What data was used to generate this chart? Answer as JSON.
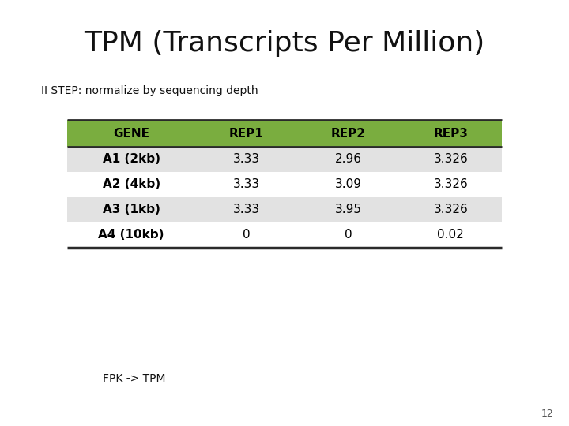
{
  "title": "TPM (Transcripts Per Million)",
  "subtitle": "II STEP: normalize by sequencing depth",
  "footer": "FPK -> TPM",
  "page_number": "12",
  "table_headers": [
    "GENE",
    "REP1",
    "REP2",
    "REP3"
  ],
  "table_rows": [
    [
      "A1 (2kb)",
      "3.33",
      "2.96",
      "3.326"
    ],
    [
      "A2 (4kb)",
      "3.33",
      "3.09",
      "3.326"
    ],
    [
      "A3 (1kb)",
      "3.33",
      "3.95",
      "3.326"
    ],
    [
      "A4 (10kb)",
      "0",
      "0",
      "0.02"
    ]
  ],
  "header_bg_color": "#7aad3f",
  "header_text_color": "#000000",
  "row_bg_even": "#e2e2e2",
  "row_bg_odd": "#ffffff",
  "row_text_color": "#000000",
  "bg_color": "#ffffff",
  "table_border_color": "#2a2a2a",
  "title_fontsize": 26,
  "subtitle_fontsize": 10,
  "table_header_fontsize": 11,
  "table_body_fontsize": 11,
  "footer_fontsize": 10
}
